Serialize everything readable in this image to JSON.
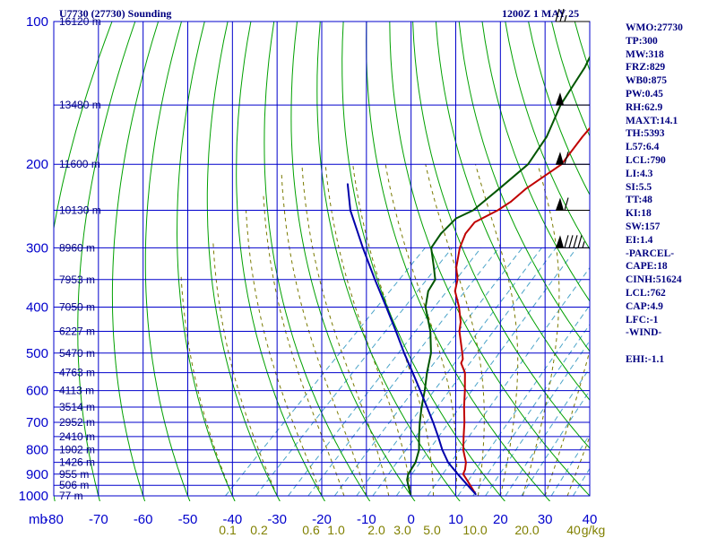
{
  "header": {
    "station": "U7730 (27730) Sounding",
    "time": "1200Z  1 MAY 25"
  },
  "indices": [
    "WMO:27730",
    "TP:300",
    "MW:318",
    "FRZ:829",
    "WB0:875",
    "PW:0.45",
    "RH:62.9",
    "MAXT:14.1",
    "TH:5393",
    "L57:6.4",
    "LCL:790",
    "LI:4.3",
    "SI:5.5",
    "TT:48",
    "KI:18",
    "SW:157",
    "EI:1.4",
    "-PARCEL-",
    "CAPE:18",
    "CINH:51624",
    "LCL:762",
    "CAP:4.9",
    "LFC:-1",
    "-WIND-",
    "",
    "EHI:-1.1"
  ],
  "colors": {
    "background": "#ffffff",
    "isobar_isotherm": "#0000cc",
    "dry_adiabat": "#00a000",
    "moist_adiabat": "#7a7a00",
    "mixing_ratio": "#4aa3c8",
    "temperature": "#c00000",
    "dewpoint": "#005500",
    "parcel": "#0000aa",
    "text": "#000080"
  },
  "chart_data": {
    "type": "line",
    "title": "U7730 (27730) Sounding",
    "subtitle": "1200Z  1 MAY 25",
    "xlabel": "",
    "ylabel": "mb",
    "x_unit": "C",
    "y_scale": "log",
    "xlim": [
      -80,
      40
    ],
    "ylim": [
      1000,
      100
    ],
    "grid": true,
    "pressure_levels": [
      100,
      200,
      300,
      400,
      500,
      600,
      700,
      800,
      900,
      1000
    ],
    "pressure_labels": [
      "100",
      "200",
      "300",
      "400",
      "500",
      "600",
      "700",
      "800",
      "900",
      "1000"
    ],
    "temperature_ticks": [
      -80,
      -70,
      -60,
      -50,
      -40,
      -30,
      -20,
      -10,
      0,
      10,
      20,
      30,
      40
    ],
    "temperature_labels": [
      "-80",
      "-70",
      "-60",
      "-50",
      "-40",
      "-30",
      "-20",
      "-10",
      "0",
      "10",
      "20",
      "30",
      "40"
    ],
    "y_axis_unit_label": "mb",
    "heights": [
      {
        "p": 100,
        "label": "16120 m"
      },
      {
        "p": 150,
        "label": "13480 m"
      },
      {
        "p": 200,
        "label": "11600 m"
      },
      {
        "p": 250,
        "label": "10130 m"
      },
      {
        "p": 300,
        "label": "8960 m"
      },
      {
        "p": 350,
        "label": "7953 m"
      },
      {
        "p": 400,
        "label": "7050 m"
      },
      {
        "p": 450,
        "label": "6227 m"
      },
      {
        "p": 500,
        "label": "5470 m"
      },
      {
        "p": 550,
        "label": "4763 m"
      },
      {
        "p": 600,
        "label": "4113 m"
      },
      {
        "p": 650,
        "label": "3514 m"
      },
      {
        "p": 700,
        "label": "2952 m"
      },
      {
        "p": 750,
        "label": "2410 m"
      },
      {
        "p": 800,
        "label": "1902 m"
      },
      {
        "p": 850,
        "label": "1426 m"
      },
      {
        "p": 900,
        "label": "955 m"
      },
      {
        "p": 950,
        "label": "506 m"
      },
      {
        "p": 1000,
        "label": "77 m"
      }
    ],
    "mixing_ratio_labels": [
      "0.1",
      "0.2",
      "0.6",
      "1.0",
      "2.0",
      "3.0",
      "5.0",
      "10.0",
      "20.0",
      "40",
      "g/kg"
    ],
    "series": [
      {
        "key": "temperature",
        "points": [
          {
            "p": 992,
            "t": 14.1
          },
          {
            "p": 925,
            "t": 8.9
          },
          {
            "p": 900,
            "t": 6.8
          },
          {
            "p": 880,
            "t": 6.2
          },
          {
            "p": 850,
            "t": 4.8
          },
          {
            "p": 800,
            "t": 1.4
          },
          {
            "p": 750,
            "t": -1.5
          },
          {
            "p": 700,
            "t": -4.5
          },
          {
            "p": 650,
            "t": -8.0
          },
          {
            "p": 600,
            "t": -11.5
          },
          {
            "p": 550,
            "t": -15.5
          },
          {
            "p": 525,
            "t": -18.5
          },
          {
            "p": 515,
            "t": -19.0
          },
          {
            "p": 500,
            "t": -20.5
          },
          {
            "p": 450,
            "t": -26.0
          },
          {
            "p": 430,
            "t": -27.8
          },
          {
            "p": 400,
            "t": -31.5
          },
          {
            "p": 370,
            "t": -36.0
          },
          {
            "p": 350,
            "t": -38.0
          },
          {
            "p": 330,
            "t": -41.0
          },
          {
            "p": 300,
            "t": -44.6
          },
          {
            "p": 280,
            "t": -46.5
          },
          {
            "p": 265,
            "t": -47.0
          },
          {
            "p": 250,
            "t": -44.5
          },
          {
            "p": 240,
            "t": -43.5
          },
          {
            "p": 225,
            "t": -43.0
          },
          {
            "p": 200,
            "t": -40.5
          },
          {
            "p": 175,
            "t": -42.0
          },
          {
            "p": 150,
            "t": -43.0
          },
          {
            "p": 125,
            "t": -45.0
          },
          {
            "p": 100,
            "t": -49.0
          }
        ]
      },
      {
        "key": "dewpoint",
        "points": [
          {
            "p": 992,
            "t": -0.5
          },
          {
            "p": 950,
            "t": -3.0
          },
          {
            "p": 925,
            "t": -4.5
          },
          {
            "p": 900,
            "t": -5.5
          },
          {
            "p": 850,
            "t": -6.5
          },
          {
            "p": 800,
            "t": -8.5
          },
          {
            "p": 750,
            "t": -11.5
          },
          {
            "p": 700,
            "t": -14.5
          },
          {
            "p": 650,
            "t": -17.5
          },
          {
            "p": 600,
            "t": -20.5
          },
          {
            "p": 550,
            "t": -24.0
          },
          {
            "p": 500,
            "t": -27.5
          },
          {
            "p": 450,
            "t": -32.5
          },
          {
            "p": 400,
            "t": -39.0
          },
          {
            "p": 370,
            "t": -42.0
          },
          {
            "p": 350,
            "t": -43.0
          },
          {
            "p": 330,
            "t": -46.0
          },
          {
            "p": 300,
            "t": -51.0
          },
          {
            "p": 280,
            "t": -52.0
          },
          {
            "p": 260,
            "t": -52.0
          },
          {
            "p": 250,
            "t": -50.0
          },
          {
            "p": 225,
            "t": -49.0
          },
          {
            "p": 200,
            "t": -48.0
          },
          {
            "p": 175,
            "t": -50.0
          },
          {
            "p": 150,
            "t": -54.0
          },
          {
            "p": 125,
            "t": -57.0
          },
          {
            "p": 110,
            "t": -60.0
          },
          {
            "p": 100,
            "t": -60.0
          }
        ]
      },
      {
        "key": "parcel",
        "points": [
          {
            "p": 992,
            "t": 14.1
          },
          {
            "p": 950,
            "t": 10.3
          },
          {
            "p": 900,
            "t": 5.6
          },
          {
            "p": 850,
            "t": 0.8
          },
          {
            "p": 800,
            "t": -3.3
          },
          {
            "p": 750,
            "t": -7.2
          },
          {
            "p": 700,
            "t": -11.5
          },
          {
            "p": 650,
            "t": -16.3
          },
          {
            "p": 600,
            "t": -21.5
          },
          {
            "p": 550,
            "t": -27.2
          },
          {
            "p": 500,
            "t": -33.5
          },
          {
            "p": 450,
            "t": -40.2
          },
          {
            "p": 400,
            "t": -47.8
          },
          {
            "p": 350,
            "t": -56.5
          },
          {
            "p": 300,
            "t": -66.3
          },
          {
            "p": 250,
            "t": -77.5
          },
          {
            "p": 220,
            "t": -84.0
          }
        ]
      }
    ],
    "wind_barbs": [
      {
        "p": 100,
        "dir": 270,
        "speed_kt": 25
      },
      {
        "p": 150,
        "dir": 275,
        "speed_kt": 50
      },
      {
        "p": 200,
        "dir": 270,
        "speed_kt": 60
      },
      {
        "p": 250,
        "dir": 270,
        "speed_kt": 60
      },
      {
        "p": 300,
        "dir": 265,
        "speed_kt": 95
      }
    ]
  }
}
